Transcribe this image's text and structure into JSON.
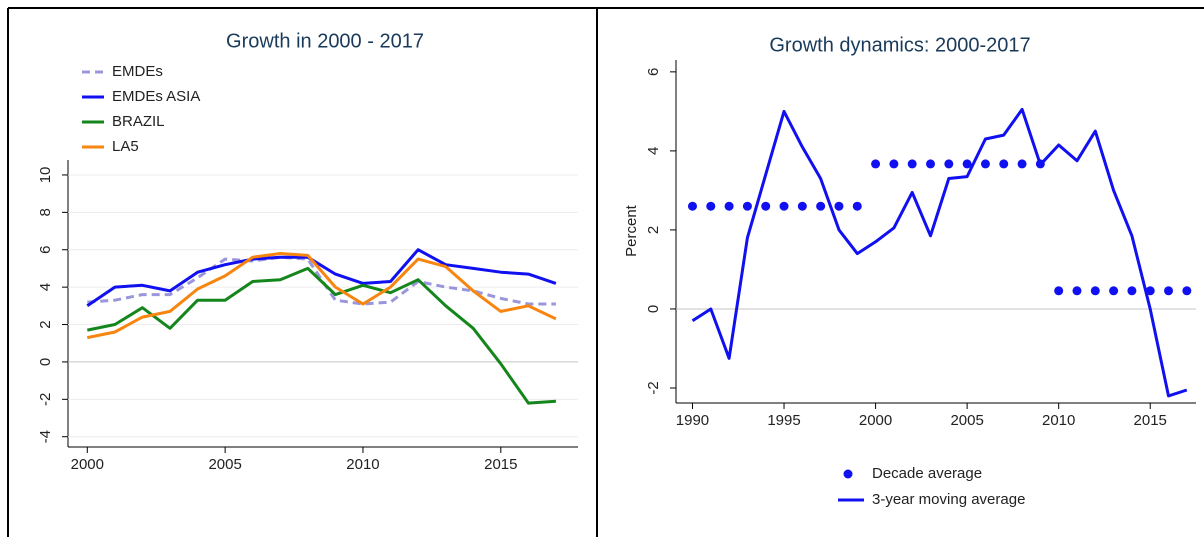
{
  "chart_data": [
    {
      "type": "line",
      "title": "Growth in 2000 - 2017",
      "x": [
        2000,
        2001,
        2002,
        2003,
        2004,
        2005,
        2006,
        2007,
        2008,
        2009,
        2010,
        2011,
        2012,
        2013,
        2014,
        2015,
        2016,
        2017
      ],
      "series": [
        {
          "name": "EMDEs",
          "color": "#9a96dc",
          "dash": true,
          "values": [
            3.2,
            3.3,
            3.6,
            3.6,
            4.5,
            5.5,
            5.4,
            5.6,
            5.5,
            3.3,
            3.1,
            3.2,
            4.3,
            4.0,
            3.8,
            3.4,
            3.1,
            3.1
          ]
        },
        {
          "name": "EMDEs ASIA",
          "color": "#1010f0",
          "values": [
            3.0,
            4.0,
            4.1,
            3.8,
            4.8,
            5.2,
            5.5,
            5.6,
            5.6,
            4.7,
            4.2,
            4.3,
            6.0,
            5.2,
            5.0,
            4.8,
            4.7,
            4.2
          ]
        },
        {
          "name": "BRAZIL",
          "color": "#15861b",
          "values": [
            1.7,
            2.0,
            2.9,
            1.8,
            3.3,
            3.3,
            4.3,
            4.4,
            5.0,
            3.6,
            4.1,
            3.7,
            4.4,
            3.0,
            1.8,
            -0.1,
            -2.2,
            -2.1
          ]
        },
        {
          "name": "LA5",
          "color": "#f7850f",
          "values": [
            1.3,
            1.6,
            2.4,
            2.7,
            3.9,
            4.6,
            5.6,
            5.8,
            5.7,
            4.0,
            3.1,
            4.0,
            5.5,
            5.1,
            3.8,
            2.7,
            3.0,
            2.3
          ]
        }
      ],
      "xlim": [
        1999.3,
        2017.8
      ],
      "xticks": [
        2000,
        2005,
        2010,
        2015
      ],
      "ylim": [
        -4.55,
        10.8
      ],
      "yticks": [
        -4,
        -2,
        0,
        2,
        4,
        6,
        8,
        10
      ],
      "grid": true,
      "legend": "top-left"
    },
    {
      "type": "line",
      "title": "Growth dynamics: 2000-2017",
      "y_label": "Percent",
      "x": [
        1990,
        1991,
        1992,
        1993,
        1994,
        1995,
        1996,
        1997,
        1998,
        1999,
        2000,
        2001,
        2002,
        2003,
        2004,
        2005,
        2006,
        2007,
        2008,
        2009,
        2010,
        2011,
        2012,
        2013,
        2014,
        2015,
        2016,
        2017
      ],
      "series": [
        {
          "name": "Decade average",
          "color": "#1010f0",
          "style": "dots",
          "values": [
            2.6,
            2.6,
            2.6,
            2.6,
            2.6,
            2.6,
            2.6,
            2.6,
            2.6,
            2.6,
            3.67,
            3.67,
            3.67,
            3.67,
            3.67,
            3.67,
            3.67,
            3.67,
            3.67,
            3.67,
            0.46,
            0.46,
            0.46,
            0.46,
            0.46,
            0.46,
            0.46,
            0.46
          ]
        },
        {
          "name": "3-year moving average",
          "color": "#1010f0",
          "style": "line",
          "values": [
            -0.3,
            0.0,
            -1.25,
            1.8,
            3.4,
            5.0,
            4.1,
            3.3,
            2.0,
            1.4,
            1.7,
            2.05,
            2.95,
            1.85,
            3.3,
            3.35,
            4.3,
            4.4,
            5.05,
            3.65,
            4.15,
            3.75,
            4.5,
            3.0,
            1.85,
            0.0,
            -2.2,
            -2.05
          ]
        }
      ],
      "xlim": [
        1989.1,
        2017.5
      ],
      "xticks": [
        1990,
        1995,
        2000,
        2005,
        2010,
        2015
      ],
      "ylim": [
        -2.38,
        6.3
      ],
      "yticks": [
        -2,
        0,
        2,
        4,
        6
      ],
      "grid": false,
      "legend": "bottom"
    }
  ]
}
